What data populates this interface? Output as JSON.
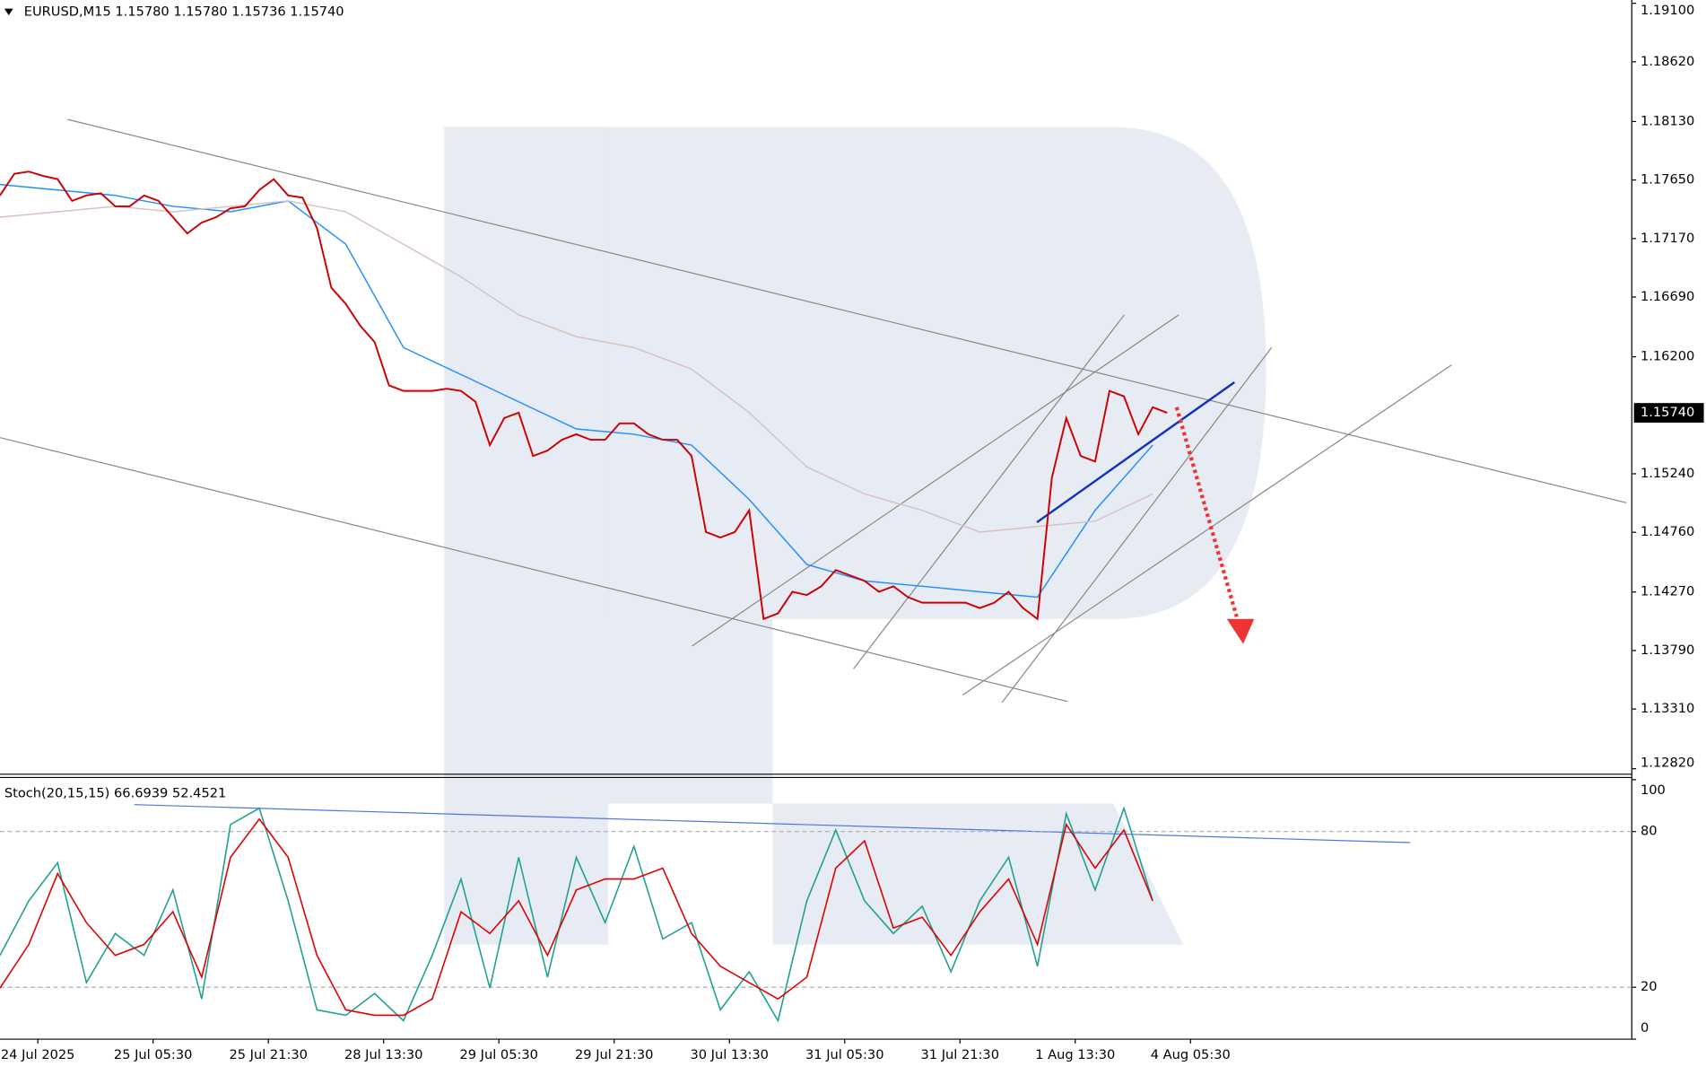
{
  "chart_data": [
    {
      "type": "line",
      "title": "EURUSD,M15  1.15780 1.15780 1.15736 1.15740",
      "color": "#cc0000",
      "x": [
        0,
        8,
        16,
        24,
        32,
        40,
        48,
        56,
        64,
        72,
        80,
        88,
        96,
        104,
        112,
        120,
        128,
        136,
        144,
        152,
        160,
        168,
        176,
        184,
        192,
        200,
        208,
        216,
        224,
        232,
        240,
        248,
        256,
        264,
        272,
        280,
        288,
        296,
        304,
        312,
        320,
        328,
        336,
        344,
        352,
        360,
        368,
        376,
        384,
        392,
        400,
        408,
        416,
        424,
        432,
        440,
        448,
        456,
        464,
        472,
        480,
        488,
        496,
        504,
        512,
        520,
        528,
        536,
        544,
        552,
        560,
        568,
        576,
        584,
        592,
        600,
        608,
        616,
        624,
        632,
        640,
        648
      ],
      "values": [
        1.17523,
        1.17702,
        1.17719,
        1.17684,
        1.17657,
        1.17479,
        1.17523,
        1.17541,
        1.17434,
        1.17434,
        1.17523,
        1.17479,
        1.17345,
        1.17212,
        1.17301,
        1.17345,
        1.17417,
        1.17434,
        1.17568,
        1.17657,
        1.17523,
        1.17506,
        1.17256,
        1.16766,
        1.16633,
        1.16455,
        1.16321,
        1.15965,
        1.1592,
        1.1592,
        1.1592,
        1.15938,
        1.1592,
        1.15831,
        1.15475,
        1.15697,
        1.15742,
        1.15386,
        1.1543,
        1.15519,
        1.15564,
        1.15519,
        1.15519,
        1.15653,
        1.15653,
        1.15564,
        1.15519,
        1.15519,
        1.15386,
        1.14762,
        1.14717,
        1.14762,
        1.1494,
        1.14049,
        1.14094,
        1.14272,
        1.14245,
        1.14317,
        1.1445,
        1.14406,
        1.14361,
        1.14272,
        1.14317,
        1.14228,
        1.14183,
        1.14183,
        1.14183,
        1.14183,
        1.14138,
        1.14183,
        1.14272,
        1.14138,
        1.14049,
        1.15207,
        1.15697,
        1.15386,
        1.15341,
        1.1592,
        1.15875,
        1.15564,
        1.15786,
        1.1574
      ],
      "moving_averages": [
        {
          "color": "#1e90ff",
          "x": [
            0,
            32,
            64,
            96,
            128,
            160,
            192,
            224,
            256,
            288,
            320,
            352,
            384,
            416,
            448,
            480,
            512,
            544,
            576,
            608,
            640
          ],
          "values": [
            1.17613,
            1.17568,
            1.17523,
            1.17434,
            1.1739,
            1.17479,
            1.17123,
            1.16276,
            1.16054,
            1.15831,
            1.15608,
            1.15564,
            1.15475,
            1.15029,
            1.14495,
            1.14361,
            1.14317,
            1.14272,
            1.14228,
            1.1494,
            1.15475
          ]
        },
        {
          "color": "#d9c2bc",
          "x": [
            0,
            32,
            64,
            96,
            128,
            160,
            192,
            224,
            256,
            288,
            320,
            352,
            384,
            416,
            448,
            480,
            512,
            544,
            576,
            608,
            640
          ],
          "values": [
            1.17345,
            1.1739,
            1.17434,
            1.1739,
            1.17434,
            1.17479,
            1.1739,
            1.17123,
            1.16855,
            1.16544,
            1.16365,
            1.16276,
            1.16098,
            1.15742,
            1.15296,
            1.15074,
            1.1494,
            1.14762,
            1.14807,
            1.14851,
            1.15074
          ]
        }
      ],
      "current_price": {
        "value": 1.1574,
        "label": "1.15740"
      },
      "xlim": [
        0,
        906
      ],
      "ylim": [
        1.12775,
        1.19127
      ],
      "yticks": [
        {
          "value": 1.191,
          "label": "1.19100"
        },
        {
          "value": 1.1862,
          "label": "1.18620"
        },
        {
          "value": 1.1813,
          "label": "1.18130"
        },
        {
          "value": 1.1765,
          "label": "1.17650"
        },
        {
          "value": 1.1717,
          "label": "1.17170"
        },
        {
          "value": 1.1669,
          "label": "1.16690"
        },
        {
          "value": 1.162,
          "label": "1.16200"
        },
        {
          "value": 1.1524,
          "label": "1.15240"
        },
        {
          "value": 1.1476,
          "label": "1.14760"
        },
        {
          "value": 1.1427,
          "label": "1.14270"
        },
        {
          "value": 1.1379,
          "label": "1.13790"
        },
        {
          "value": 1.1331,
          "label": "1.13310"
        },
        {
          "value": 1.1282,
          "label": "1.12820"
        }
      ],
      "xticks": [
        {
          "value": 21,
          "label": "24 Jul 2025"
        },
        {
          "value": 85,
          "label": "25 Jul 05:30"
        },
        {
          "value": 149,
          "label": "25 Jul 21:30"
        },
        {
          "value": 213,
          "label": "28 Jul 13:30"
        },
        {
          "value": 277,
          "label": "29 Jul 05:30"
        },
        {
          "value": 341,
          "label": "29 Jul 21:30"
        },
        {
          "value": 405,
          "label": "30 Jul 13:30"
        },
        {
          "value": 469,
          "label": "31 Jul 05:30"
        },
        {
          "value": 533,
          "label": "31 Jul 21:30"
        },
        {
          "value": 597,
          "label": "1 Aug 13:30"
        },
        {
          "value": 661,
          "label": "4 Aug 05:30"
        }
      ]
    },
    {
      "type": "line",
      "title": "Stoch(20,15,15) 66.6939 52.4521",
      "x": [
        0,
        16,
        32,
        48,
        64,
        80,
        96,
        112,
        128,
        144,
        160,
        176,
        192,
        208,
        224,
        240,
        256,
        272,
        288,
        304,
        320,
        336,
        352,
        368,
        384,
        400,
        416,
        432,
        448,
        464,
        480,
        496,
        512,
        528,
        544,
        560,
        576,
        592,
        608,
        624,
        640
      ],
      "series": [
        {
          "color": "#20a090",
          "values": [
            32.3,
            53.3,
            68.0,
            21.8,
            40.7,
            32.3,
            57.5,
            15.5,
            82.7,
            89.0,
            53.3,
            11.3,
            9.2,
            17.6,
            7.1,
            32.3,
            61.7,
            19.7,
            70.1,
            23.9,
            70.1,
            44.9,
            74.3,
            38.6,
            44.9,
            11.3,
            26.0,
            7.1,
            53.3,
            80.6,
            53.3,
            40.7,
            51.2,
            26.0,
            53.3,
            70.1,
            28.1,
            86.9,
            57.5,
            89.0,
            53.3
          ]
        },
        {
          "color": "#e00000",
          "values": [
            19.7,
            36.5,
            63.8,
            44.9,
            32.3,
            36.5,
            49.1,
            23.9,
            70.1,
            84.8,
            70.1,
            32.3,
            11.3,
            9.2,
            9.2,
            15.5,
            49.1,
            40.7,
            53.3,
            32.3,
            57.5,
            61.7,
            61.7,
            65.9,
            40.7,
            28.1,
            21.8,
            15.5,
            23.9,
            65.9,
            76.4,
            42.8,
            47.0,
            32.3,
            49.1,
            61.7,
            36.5,
            82.7,
            65.9,
            80.6,
            53.3
          ]
        }
      ],
      "xlim": [
        0,
        906
      ],
      "ylim": [
        0,
        100
      ],
      "yticks": [
        0,
        20,
        80,
        100
      ],
      "levels": [
        20,
        80
      ]
    }
  ]
}
